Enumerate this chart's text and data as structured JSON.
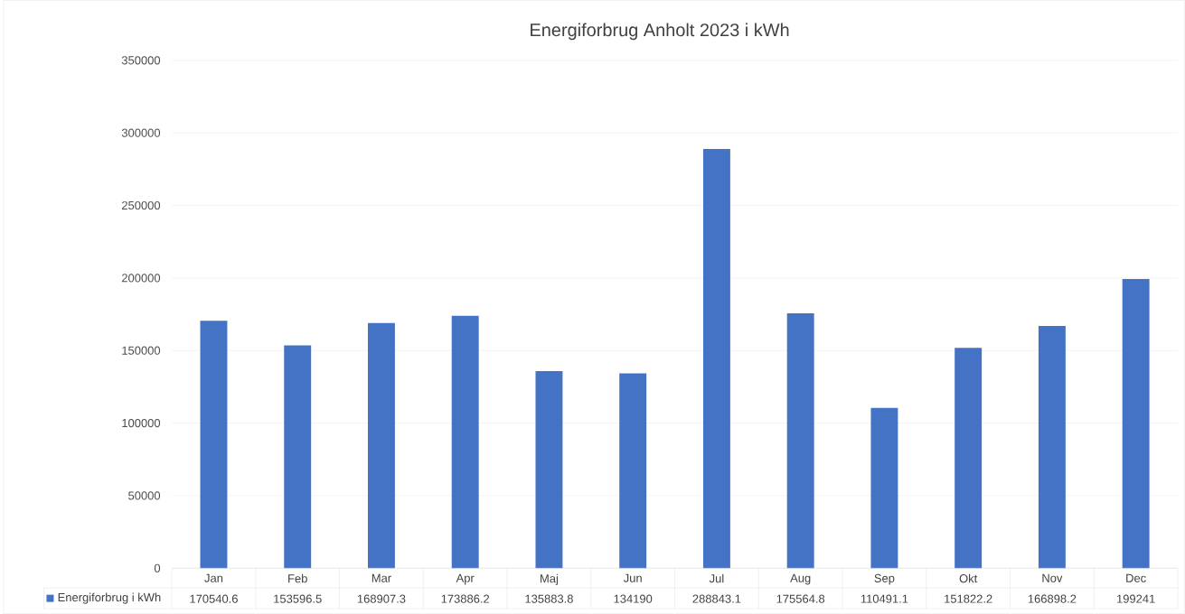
{
  "chart_data": {
    "type": "bar",
    "title": "Energiforbrug Anholt 2023 i kWh",
    "categories": [
      "Jan",
      "Feb",
      "Mar",
      "Apr",
      "Maj",
      "Jun",
      "Jul",
      "Aug",
      "Sep",
      "Okt",
      "Nov",
      "Dec"
    ],
    "series": [
      {
        "name": "Energiforbrug i kWh",
        "color": "#4472c4",
        "values": [
          170540.6,
          153596.5,
          168907.3,
          173886.2,
          135883.8,
          134190,
          288843.1,
          175564.8,
          110491.1,
          151822.2,
          166898.2,
          199241
        ]
      }
    ],
    "ylim": [
      0,
      350000
    ],
    "yticks": [
      0,
      50000,
      100000,
      150000,
      200000,
      250000,
      300000,
      350000
    ],
    "grid": "y",
    "legend": "bottom",
    "data_labels": true
  }
}
